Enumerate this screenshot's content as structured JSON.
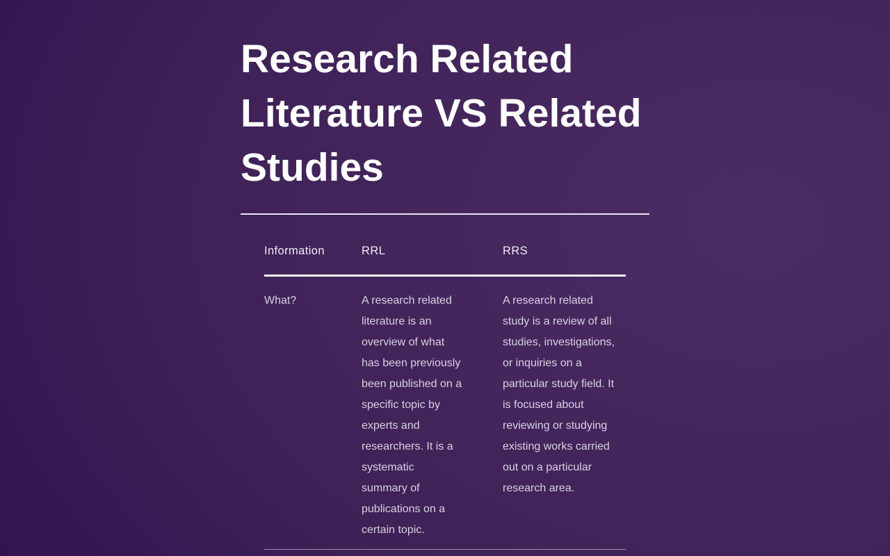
{
  "title": "Research Related Literature VS Related Studies",
  "table": {
    "headers": [
      "Information",
      "RRL",
      "RRS"
    ],
    "rows": [
      {
        "cells": [
          "What?",
          "A research related literature is an overview of what has been previously been published on a specific topic by experts and researchers. It is a systematic summary of publications on a certain topic.",
          "A research related study is a review of all studies, investigations, or inquiries on a particular study field. It is focused about reviewing or studying existing works carried out on a particular research area."
        ]
      }
    ]
  },
  "colors": {
    "background_dark": "#2c0a4e",
    "background_light": "#4b2c64",
    "title_text": "#ffffff",
    "header_text": "#f1ecf7",
    "body_text": "#d9d1e4",
    "rule": "#ffffff"
  }
}
